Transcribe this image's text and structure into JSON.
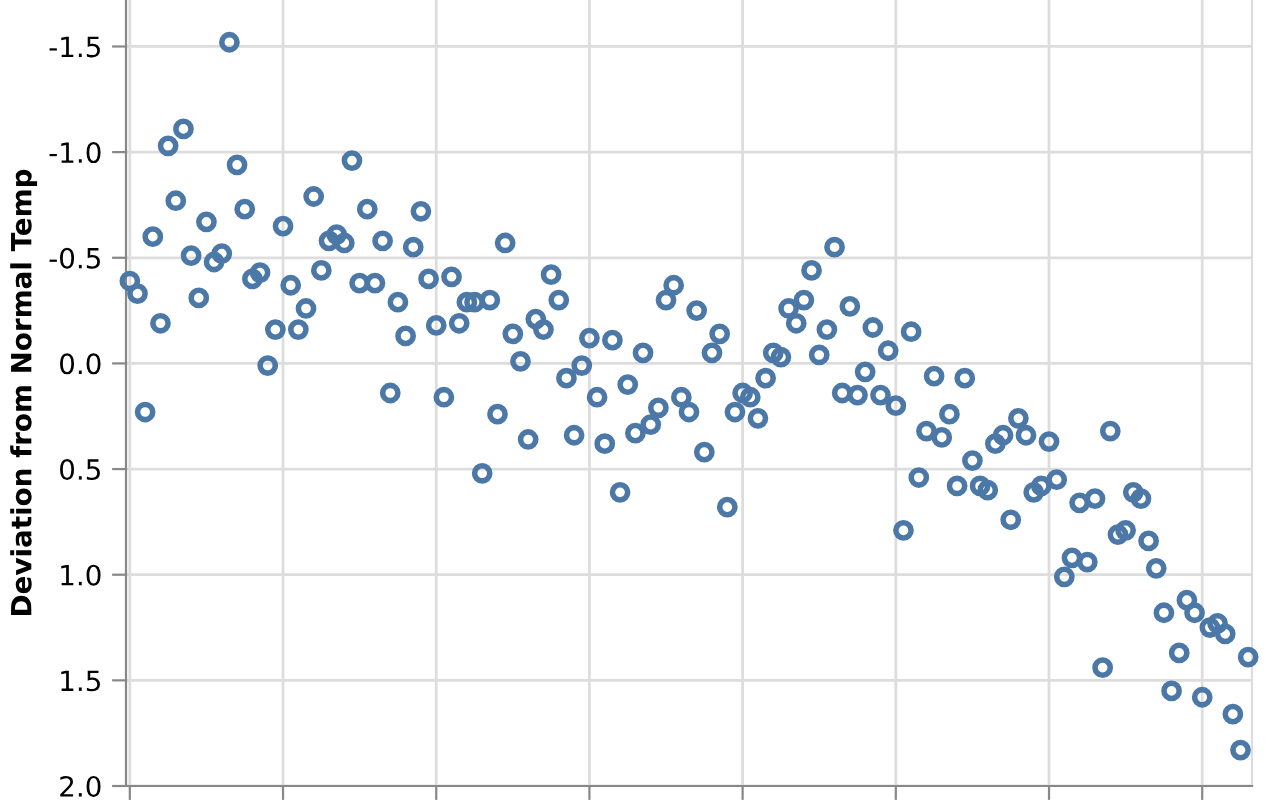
{
  "chart_data": {
    "type": "scatter",
    "ylabel": "Deviation from Normal Temp",
    "marker": "circle",
    "grid": true,
    "tick_labels": "y",
    "categories": [
      null,
      null,
      null,
      null,
      null,
      null,
      null,
      null,
      null,
      null,
      null,
      null,
      null,
      null,
      null,
      null,
      null,
      null,
      null,
      null,
      null,
      null,
      null,
      null,
      null,
      null,
      null,
      null,
      null,
      null,
      null,
      null,
      null,
      null,
      null,
      null,
      null,
      null,
      null,
      null,
      null,
      null,
      null,
      null,
      null,
      null,
      null,
      null,
      null,
      null,
      null,
      null,
      null,
      null,
      null,
      null,
      null,
      null,
      null,
      null,
      null,
      null,
      null,
      null,
      null,
      null,
      null,
      null,
      null,
      null,
      null,
      null,
      null,
      null,
      null,
      null,
      null,
      null,
      null,
      null,
      null,
      null,
      null,
      null,
      null,
      null,
      null,
      null,
      null,
      null,
      null,
      null,
      null,
      null,
      null,
      null,
      null,
      null,
      null,
      null,
      null,
      null,
      null,
      null,
      null,
      null,
      null,
      null,
      null,
      null,
      null,
      null,
      null,
      null,
      null,
      null,
      null,
      null,
      null,
      null,
      null,
      null,
      null,
      null,
      null,
      null,
      null,
      null,
      null,
      null,
      null,
      null,
      null,
      null,
      null,
      null,
      null,
      null,
      null,
      null,
      null,
      null,
      null,
      null,
      null,
      null,
      null
    ],
    "ylim": [
      2.0,
      -1.72
    ],
    "yticks": [
      {
        "value": -1.5,
        "label": "-1.5"
      },
      {
        "value": -1,
        "label": "-1.0"
      },
      {
        "value": -0.5,
        "label": "-0.5"
      },
      {
        "value": 0,
        "label": "0.0"
      },
      {
        "value": 0.5,
        "label": "0.5"
      },
      {
        "value": 1,
        "label": "1.0"
      },
      {
        "value": 1.5,
        "label": "1.5"
      },
      {
        "value": 2,
        "label": "2.0"
      }
    ],
    "series": [
      {
        "color": "#4c78a8",
        "values": [
          -0.39,
          -0.33,
          0.23,
          -0.6,
          -0.19,
          -1.03,
          -0.77,
          -1.11,
          -0.51,
          -0.31,
          -0.67,
          -0.48,
          -0.52,
          -1.52,
          -0.94,
          -0.73,
          -0.4,
          -0.43,
          0.01,
          -0.16,
          -0.65,
          -0.37,
          -0.16,
          -0.26,
          -0.79,
          -0.44,
          -0.58,
          -0.61,
          -0.57,
          -0.96,
          -0.38,
          -0.73,
          -0.38,
          -0.58,
          0.14,
          -0.29,
          -0.13,
          -0.55,
          -0.72,
          -0.4,
          -0.18,
          0.16,
          -0.41,
          -0.19,
          -0.29,
          -0.29,
          0.52,
          -0.3,
          0.24,
          -0.57,
          -0.14,
          -0.01,
          0.36,
          -0.21,
          -0.16,
          -0.42,
          -0.3,
          0.07,
          0.34,
          0.01,
          -0.12,
          0.16,
          0.38,
          -0.11,
          0.61,
          0.1,
          0.33,
          -0.05,
          0.29,
          0.21,
          -0.3,
          -0.37,
          0.16,
          0.23,
          -0.25,
          0.42,
          -0.05,
          -0.14,
          0.68,
          0.23,
          0.14,
          0.16,
          0.26,
          0.07,
          -0.05,
          -0.03,
          -0.26,
          -0.19,
          -0.3,
          -0.44,
          -0.04,
          -0.16,
          -0.55,
          0.14,
          -0.27,
          0.15,
          0.04,
          -0.17,
          0.15,
          -0.06,
          0.2,
          0.79,
          -0.15,
          0.54,
          0.32,
          0.06,
          0.35,
          0.24,
          0.58,
          0.07,
          0.46,
          0.58,
          0.6,
          0.38,
          0.34,
          0.74,
          0.26,
          0.34,
          0.61,
          0.58,
          0.37,
          0.55,
          1.01,
          0.92,
          0.66,
          0.94,
          0.64,
          1.44,
          0.32,
          0.81,
          0.79,
          0.61,
          0.64,
          0.84,
          0.97,
          1.18,
          1.55,
          1.37,
          1.12,
          1.18,
          1.58,
          1.25,
          1.23,
          1.28,
          1.66,
          1.83,
          1.39
        ]
      }
    ]
  }
}
